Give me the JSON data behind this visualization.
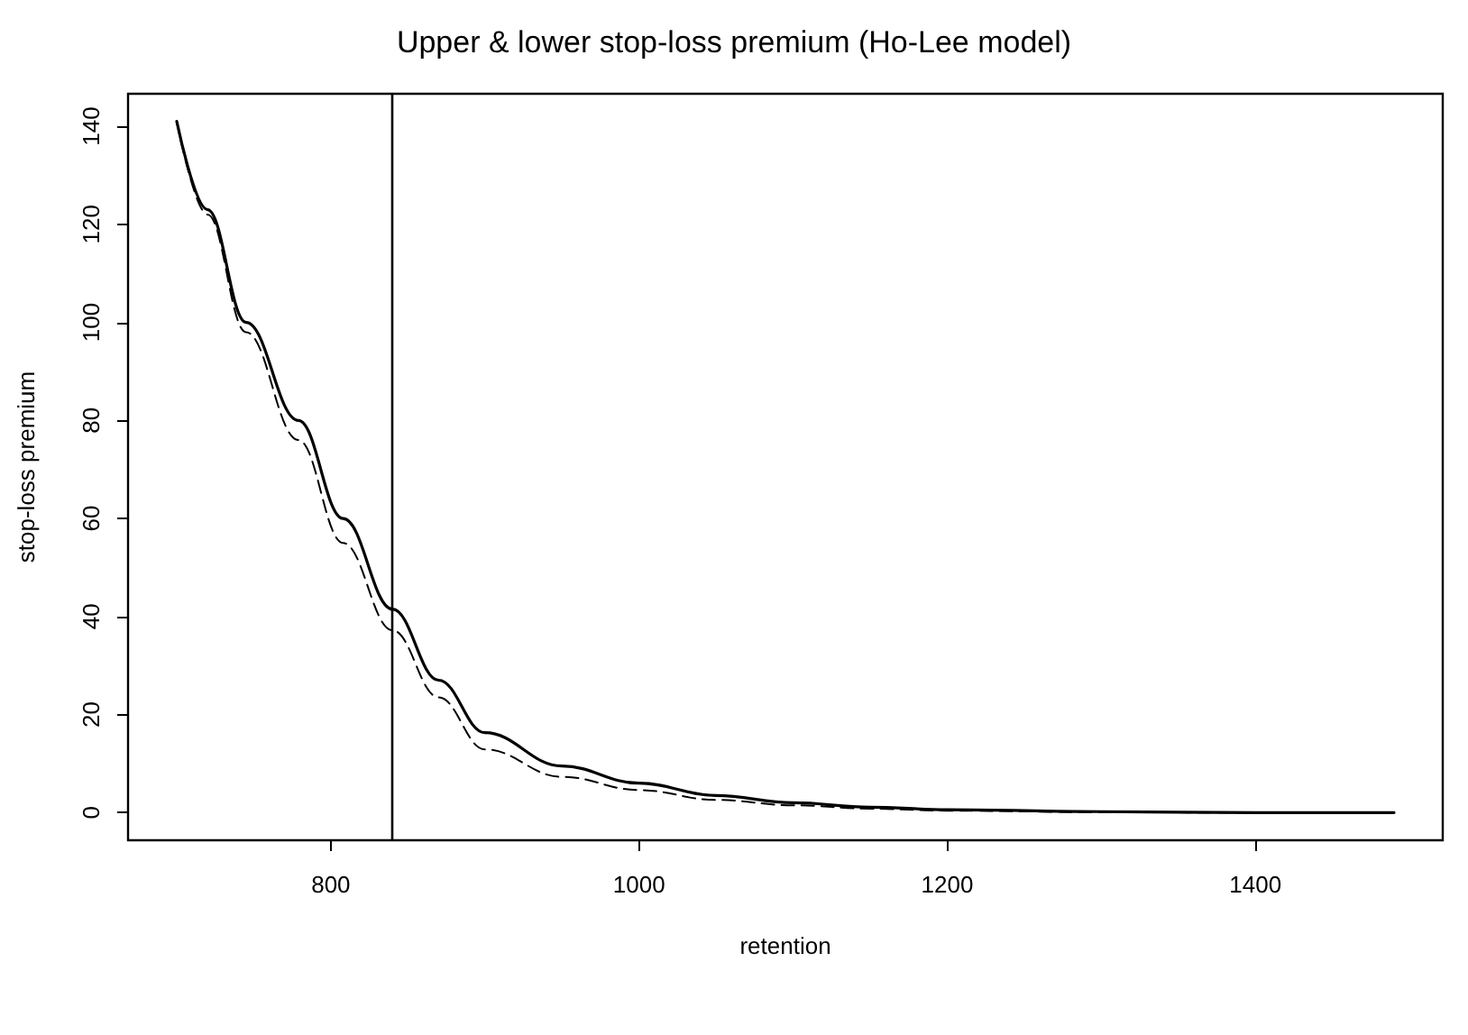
{
  "chart_data": {
    "type": "line",
    "title": "Upper & lower stop-loss premium (Ho-Lee model)",
    "xlabel": "retention",
    "ylabel": "stop-loss premium",
    "xlim": [
      668.4,
      1521.6
    ],
    "xticks": [
      800,
      1000,
      1200,
      1400
    ],
    "ylim": [
      -5.64,
      146.64
    ],
    "yticks": [
      0,
      20,
      40,
      60,
      80,
      100,
      120,
      140
    ],
    "grid": false,
    "marker": "none",
    "series": [
      {
        "color": "#000000",
        "line_style": "solid",
        "x": [
          700,
          720,
          745,
          779,
          808,
          840,
          870,
          900,
          950,
          1000,
          1050,
          1100,
          1150,
          1200,
          1300,
          1400,
          1490
        ],
        "values": [
          141,
          123,
          100,
          80,
          60,
          41.5,
          27,
          16.3,
          9.5,
          6,
          3.5,
          2,
          1.1,
          0.6,
          0.2,
          0,
          0
        ]
      },
      {
        "color": "#000000",
        "line_style": "dashed",
        "x": [
          700,
          720,
          745,
          779,
          808,
          840,
          870,
          900,
          950,
          1000,
          1050,
          1100,
          1150,
          1200,
          1300,
          1400,
          1490
        ],
        "values": [
          141,
          122,
          98,
          76,
          55,
          37.2,
          23.5,
          12.9,
          7.3,
          4.6,
          2.6,
          1.5,
          0.8,
          0.4,
          0.1,
          0,
          0
        ]
      }
    ],
    "ref_lines": [
      {
        "axis": "x",
        "value": 840,
        "color": "#000000"
      }
    ]
  }
}
